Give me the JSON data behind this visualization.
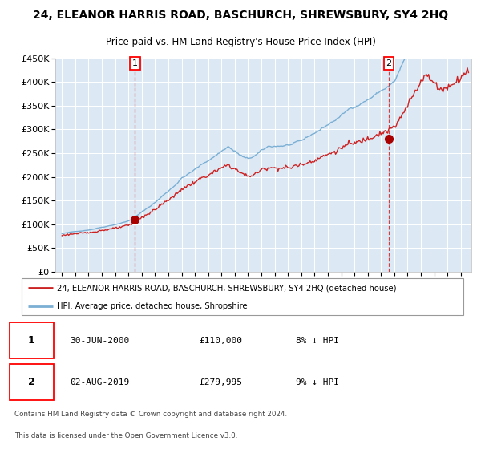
{
  "title": "24, ELEANOR HARRIS ROAD, BASCHURCH, SHREWSBURY, SY4 2HQ",
  "subtitle": "Price paid vs. HM Land Registry's House Price Index (HPI)",
  "legend_line1": "24, ELEANOR HARRIS ROAD, BASCHURCH, SHREWSBURY, SY4 2HQ (detached house)",
  "legend_line2": "HPI: Average price, detached house, Shropshire",
  "annotation1_label": "1",
  "annotation1_date": "30-JUN-2000",
  "annotation1_price": "£110,000",
  "annotation1_hpi": "8% ↓ HPI",
  "annotation2_label": "2",
  "annotation2_date": "02-AUG-2019",
  "annotation2_price": "£279,995",
  "annotation2_hpi": "9% ↓ HPI",
  "footnote1": "Contains HM Land Registry data © Crown copyright and database right 2024.",
  "footnote2": "This data is licensed under the Open Government Licence v3.0.",
  "hpi_color": "#7bafd4",
  "price_color": "#cc2222",
  "dot_color": "#aa0000",
  "vline_color": "#cc2222",
  "plot_bg": "#dce9f5",
  "grid_color": "#ffffff",
  "ylim": [
    0,
    450000
  ],
  "yticks": [
    0,
    50000,
    100000,
    150000,
    200000,
    250000,
    300000,
    350000,
    400000,
    450000
  ],
  "xlim_start": 1994.5,
  "xlim_end": 2025.8,
  "sale1_x": 2000.5,
  "sale1_y": 110000,
  "sale2_x": 2019.583,
  "sale2_y": 279995
}
